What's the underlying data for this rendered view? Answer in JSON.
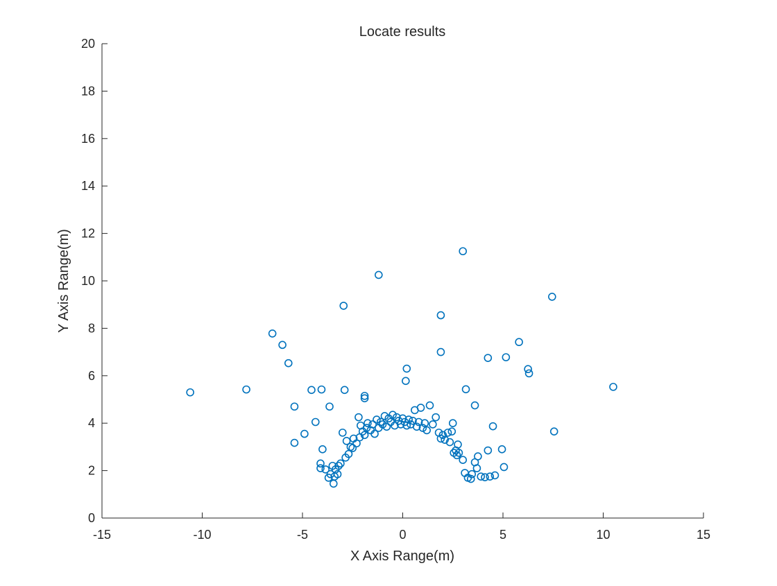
{
  "chart_data": {
    "type": "scatter",
    "title": "Locate results",
    "xlabel": "X Axis Range(m)",
    "ylabel": "Y Axis Range(m)",
    "xlim": [
      -15,
      15
    ],
    "ylim": [
      0,
      20
    ],
    "xticks": [
      -15,
      -10,
      -5,
      0,
      5,
      10,
      15
    ],
    "yticks": [
      0,
      2,
      4,
      6,
      8,
      10,
      12,
      14,
      16,
      18,
      20
    ],
    "xtick_labels": [
      "-15",
      "-10",
      "-5",
      "0",
      "5",
      "10",
      "15"
    ],
    "ytick_labels": [
      "0",
      "2",
      "4",
      "6",
      "8",
      "10",
      "12",
      "14",
      "16",
      "18",
      "20"
    ],
    "grid": false,
    "marker": "open-circle",
    "marker_color": "#0072BD",
    "series": [
      {
        "points": [
          [
            -10.6,
            5.3
          ],
          [
            -7.8,
            5.42
          ],
          [
            -6.5,
            7.78
          ],
          [
            -6.0,
            7.3
          ],
          [
            -5.7,
            6.53
          ],
          [
            -5.4,
            4.7
          ],
          [
            -5.4,
            3.17
          ],
          [
            -4.9,
            3.55
          ],
          [
            -4.55,
            5.4
          ],
          [
            -4.35,
            4.05
          ],
          [
            -4.05,
            5.42
          ],
          [
            -4.0,
            2.9
          ],
          [
            -3.65,
            4.7
          ],
          [
            -2.95,
            8.95
          ],
          [
            -2.9,
            5.4
          ],
          [
            -1.9,
            5.15
          ],
          [
            -1.9,
            5.05
          ],
          [
            -1.2,
            10.25
          ],
          [
            0.15,
            5.78
          ],
          [
            0.2,
            6.3
          ],
          [
            1.9,
            8.55
          ],
          [
            1.9,
            7.0
          ],
          [
            3.0,
            11.25
          ],
          [
            3.15,
            5.43
          ],
          [
            3.6,
            4.75
          ],
          [
            4.25,
            6.75
          ],
          [
            4.5,
            3.87
          ],
          [
            5.15,
            6.78
          ],
          [
            5.8,
            7.42
          ],
          [
            6.25,
            6.28
          ],
          [
            6.3,
            6.1
          ],
          [
            7.45,
            9.33
          ],
          [
            7.55,
            3.65
          ],
          [
            10.5,
            5.53
          ],
          [
            -4.1,
            2.3
          ],
          [
            -4.1,
            2.1
          ],
          [
            -3.85,
            2.05
          ],
          [
            -3.7,
            1.7
          ],
          [
            -3.6,
            1.85
          ],
          [
            -3.5,
            2.2
          ],
          [
            -3.45,
            1.45
          ],
          [
            -3.4,
            1.75
          ],
          [
            -3.35,
            2.05
          ],
          [
            -3.25,
            1.85
          ],
          [
            -3.2,
            2.2
          ],
          [
            -3.1,
            2.3
          ],
          [
            -3.0,
            3.6
          ],
          [
            -2.85,
            2.55
          ],
          [
            -2.8,
            3.25
          ],
          [
            -2.7,
            2.7
          ],
          [
            -2.6,
            3.0
          ],
          [
            -2.5,
            2.95
          ],
          [
            -2.45,
            3.35
          ],
          [
            -2.3,
            3.15
          ],
          [
            -2.2,
            4.25
          ],
          [
            -2.15,
            3.4
          ],
          [
            -2.1,
            3.9
          ],
          [
            -2.0,
            3.65
          ],
          [
            -1.9,
            3.5
          ],
          [
            -1.8,
            3.8
          ],
          [
            -1.75,
            4.0
          ],
          [
            -1.6,
            3.7
          ],
          [
            -1.5,
            3.95
          ],
          [
            -1.4,
            3.55
          ],
          [
            -1.3,
            4.15
          ],
          [
            -1.2,
            3.8
          ],
          [
            -1.1,
            4.05
          ],
          [
            -1.0,
            3.95
          ],
          [
            -0.9,
            4.3
          ],
          [
            -0.8,
            3.85
          ],
          [
            -0.7,
            4.2
          ],
          [
            -0.6,
            4.05
          ],
          [
            -0.5,
            4.35
          ],
          [
            -0.4,
            3.9
          ],
          [
            -0.3,
            4.25
          ],
          [
            -0.2,
            4.1
          ],
          [
            -0.1,
            3.95
          ],
          [
            0.0,
            4.2
          ],
          [
            0.1,
            4.05
          ],
          [
            0.2,
            3.9
          ],
          [
            0.3,
            4.15
          ],
          [
            0.4,
            3.95
          ],
          [
            0.5,
            4.1
          ],
          [
            0.6,
            4.55
          ],
          [
            0.7,
            3.85
          ],
          [
            0.8,
            4.05
          ],
          [
            0.9,
            4.65
          ],
          [
            1.0,
            3.8
          ],
          [
            1.1,
            4.0
          ],
          [
            1.2,
            3.7
          ],
          [
            1.35,
            4.75
          ],
          [
            1.5,
            3.95
          ],
          [
            1.65,
            4.25
          ],
          [
            1.8,
            3.6
          ],
          [
            1.9,
            3.35
          ],
          [
            2.0,
            3.5
          ],
          [
            2.1,
            3.3
          ],
          [
            2.25,
            3.6
          ],
          [
            2.35,
            3.2
          ],
          [
            2.45,
            3.65
          ],
          [
            2.5,
            4.0
          ],
          [
            2.55,
            2.75
          ],
          [
            2.65,
            2.85
          ],
          [
            2.7,
            2.65
          ],
          [
            2.75,
            3.1
          ],
          [
            2.8,
            2.75
          ],
          [
            3.0,
            2.45
          ],
          [
            3.1,
            1.9
          ],
          [
            3.25,
            1.7
          ],
          [
            3.4,
            1.65
          ],
          [
            3.45,
            1.85
          ],
          [
            3.6,
            2.35
          ],
          [
            3.7,
            2.1
          ],
          [
            3.75,
            2.6
          ],
          [
            3.9,
            1.75
          ],
          [
            4.1,
            1.72
          ],
          [
            4.25,
            2.85
          ],
          [
            4.35,
            1.75
          ],
          [
            4.6,
            1.8
          ],
          [
            4.95,
            2.9
          ],
          [
            5.05,
            2.15
          ]
        ]
      }
    ]
  }
}
